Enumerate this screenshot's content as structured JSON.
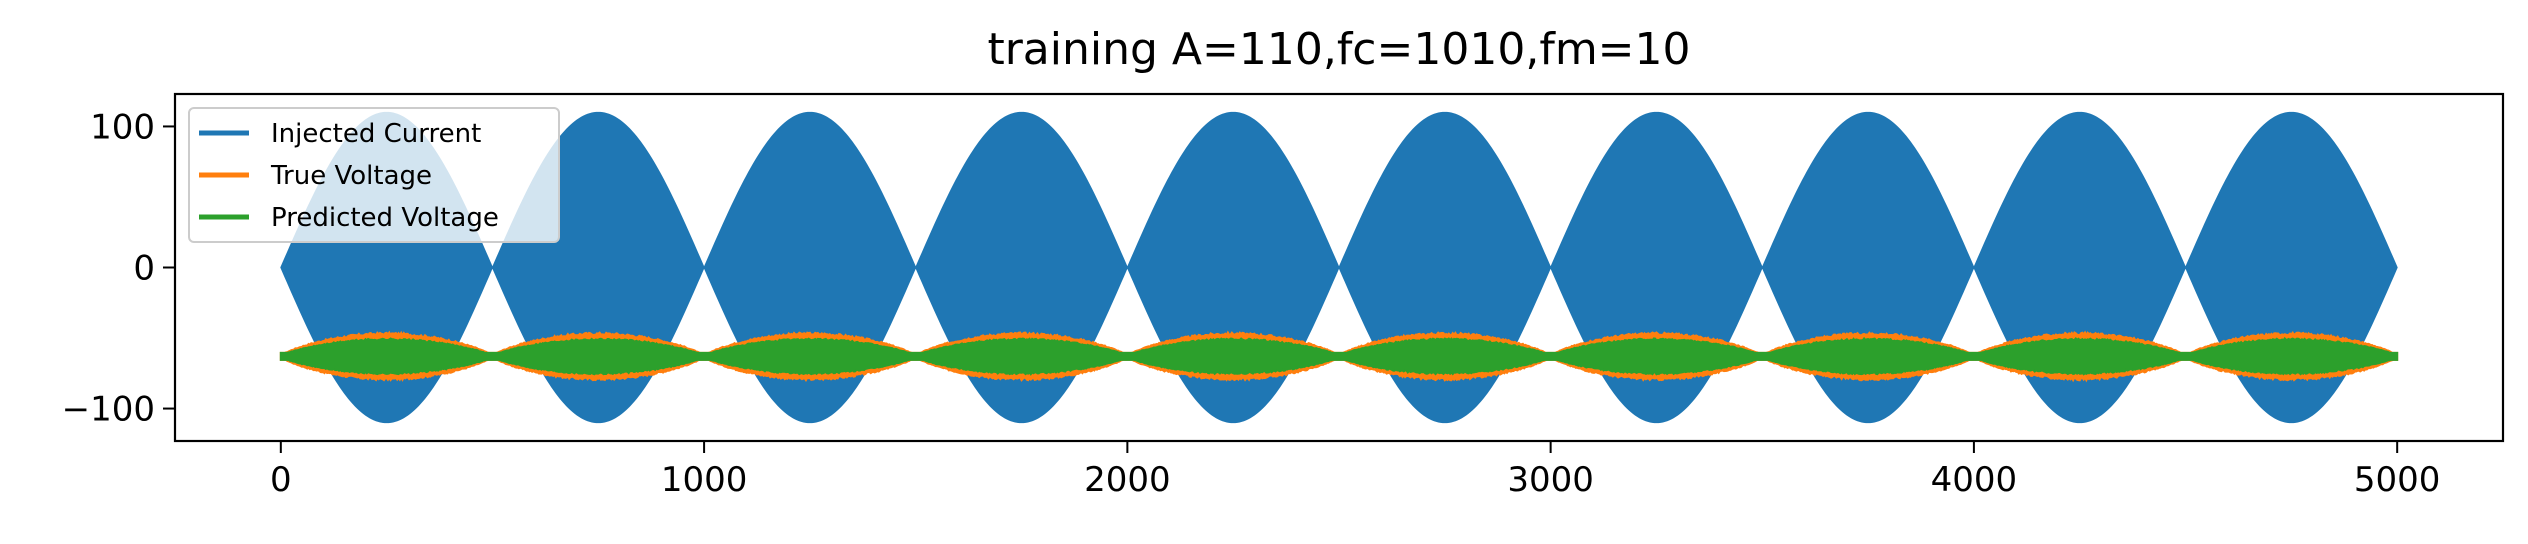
{
  "chart_data": {
    "type": "line",
    "title": "training A=110,fc=1010,fm=10",
    "xlabel": "",
    "ylabel": "",
    "xlim": [
      -250,
      5250
    ],
    "ylim": [
      -123,
      123
    ],
    "x_ticks": [
      0,
      1000,
      2000,
      3000,
      4000,
      5000
    ],
    "x_tick_labels": [
      "0",
      "1000",
      "2000",
      "3000",
      "4000",
      "5000"
    ],
    "y_ticks": [
      -100,
      0,
      100
    ],
    "y_tick_labels": [
      "−100",
      "0",
      "100"
    ],
    "grid": false,
    "legend": {
      "placement": "upper-left",
      "entries": [
        "Injected Current",
        "True Voltage",
        "Predicted Voltage"
      ]
    },
    "series": [
      {
        "name": "Injected Current",
        "color": "#1f77b4",
        "description": "amplitude-modulated carrier",
        "amplitude": 110,
        "x_range": [
          0,
          5000
        ],
        "envelope_period": 500,
        "envelope_peaks_x": [
          250,
          750,
          1250,
          1750,
          2250,
          2750,
          3250,
          3750,
          4250,
          4750
        ],
        "envelope_nulls_x": [
          0,
          500,
          1000,
          1500,
          2000,
          2500,
          3000,
          3500,
          4000,
          4500,
          5000
        ]
      },
      {
        "name": "True Voltage",
        "color": "#ff7f0e",
        "x_range": [
          0,
          5000
        ],
        "offset": -63,
        "max_deviation": 16,
        "envelope_period": 500
      },
      {
        "name": "Predicted Voltage",
        "color": "#2ca02c",
        "x_range": [
          0,
          5000
        ],
        "offset": -63,
        "max_deviation": 12,
        "envelope_period": 500
      }
    ]
  }
}
